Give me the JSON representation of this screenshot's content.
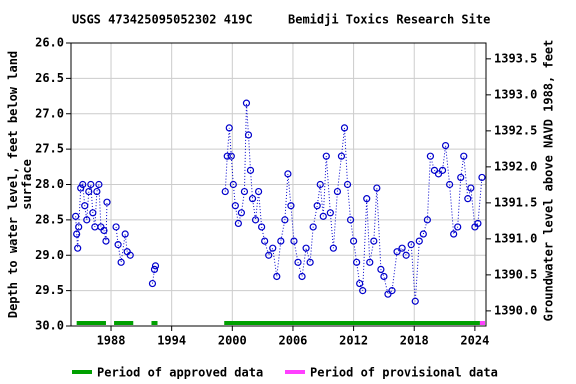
{
  "chart_data": {
    "type": "scatter",
    "title": "USGS 473425095052302 419C",
    "subtitle": "Bemidji Toxics Research Site",
    "ylabel": [
      "Depth to water level, feet below land",
      "surface"
    ],
    "y2label": "Groundwater level above NAVD 1988, feet",
    "xlim": [
      1984.04,
      2025.1
    ],
    "xticks": [
      1988,
      1994,
      2000,
      2006,
      2012,
      2018,
      2024
    ],
    "ylim": [
      26,
      30
    ],
    "y_inverted": true,
    "yticks": [
      {
        "value": 26,
        "label": "26.0"
      },
      26.5,
      {
        "value": 27,
        "label": "27.0"
      },
      27.5,
      {
        "value": 28,
        "label": "28.0"
      },
      28.5,
      {
        "value": 29,
        "label": "29.0"
      },
      29.5,
      {
        "value": 30,
        "label": "30.0"
      }
    ],
    "y2lim": [
      1389.79,
      1393.72
    ],
    "y2ticks": [
      {
        "value": 1390,
        "label": "1390.0"
      },
      1390.5,
      {
        "value": 1391,
        "label": "1391.0"
      },
      1391.5,
      {
        "value": 1392,
        "label": "1392.0"
      },
      1392.5,
      {
        "value": 1393,
        "label": "1393.0"
      },
      1393.5
    ],
    "grid": true,
    "series": [
      {
        "color": "#0000cc",
        "x": [
          1984.5,
          1984.6,
          1984.7,
          1984.8,
          1985.0,
          1985.2,
          1985.4,
          1985.6,
          1985.8,
          1986.0,
          1986.2,
          1986.4,
          1986.6,
          1986.8,
          1987.0,
          1987.3,
          1987.5,
          1987.6,
          1988.0,
          1988.5,
          1988.7,
          1989.0,
          1989.4,
          1989.6,
          1989.9,
          1991.0,
          1992.1,
          1992.3,
          1992.4,
          1996.0,
          1999.3,
          1999.5,
          1999.7,
          1999.9,
          2000.1,
          2000.3,
          2000.6,
          2000.9,
          2001.2,
          2001.4,
          2001.6,
          2001.8,
          2002.0,
          2002.3,
          2002.6,
          2002.9,
          2003.2,
          2003.6,
          2004.0,
          2004.4,
          2004.8,
          2005.2,
          2005.5,
          2005.8,
          2006.1,
          2006.5,
          2006.9,
          2007.3,
          2007.7,
          2008.0,
          2008.4,
          2008.7,
          2009.0,
          2009.3,
          2009.7,
          2010.0,
          2010.4,
          2010.8,
          2011.1,
          2011.4,
          2011.7,
          2012.0,
          2012.3,
          2012.6,
          2012.9,
          2013.3,
          2013.6,
          2014.0,
          2014.3,
          2014.7,
          2015.0,
          2015.4,
          2015.8,
          2016.3,
          2016.8,
          2017.2,
          2017.7,
          2018.1,
          2018.5,
          2018.9,
          2019.3,
          2019.6,
          2020.0,
          2020.4,
          2020.8,
          2021.1,
          2021.5,
          2021.9,
          2022.3,
          2022.6,
          2022.9,
          2023.3,
          2023.6,
          2024.0,
          2024.3,
          2024.7
        ],
        "values": [
          28.45,
          28.7,
          28.9,
          28.6,
          28.05,
          28.0,
          28.3,
          28.5,
          28.1,
          28.0,
          28.4,
          28.6,
          28.1,
          28.0,
          28.6,
          28.65,
          28.8,
          28.25,
          null,
          28.6,
          28.85,
          29.1,
          28.7,
          28.95,
          29.0,
          null,
          29.4,
          29.2,
          29.15,
          null,
          28.1,
          27.6,
          27.2,
          27.6,
          28.0,
          28.3,
          28.55,
          28.4,
          28.1,
          26.85,
          27.3,
          27.8,
          28.2,
          28.5,
          28.1,
          28.6,
          28.8,
          29.0,
          28.9,
          29.3,
          28.8,
          28.5,
          27.85,
          28.3,
          28.8,
          29.1,
          29.3,
          28.9,
          29.1,
          28.6,
          28.3,
          28.0,
          28.45,
          27.6,
          28.4,
          28.9,
          28.1,
          27.6,
          27.2,
          28.0,
          28.5,
          28.8,
          29.1,
          29.4,
          29.5,
          28.2,
          29.1,
          28.8,
          28.05,
          29.2,
          29.3,
          29.55,
          29.5,
          28.95,
          28.9,
          29.0,
          28.85,
          29.65,
          28.8,
          28.7,
          28.5,
          27.6,
          27.8,
          27.85,
          27.8,
          27.45,
          28.0,
          28.7,
          28.6,
          27.9,
          27.6,
          28.2,
          28.05,
          28.6,
          28.55,
          27.9
        ]
      }
    ],
    "approved_periods": [
      [
        1984.6,
        1987.5
      ],
      [
        1988.3,
        1990.2
      ],
      [
        1992.0,
        1992.6
      ],
      [
        1999.2,
        2024.5
      ]
    ],
    "provisional_periods": [
      [
        2024.5,
        2025.0
      ]
    ],
    "legend": [
      {
        "label": "Period of approved data",
        "color": "#00a000"
      },
      {
        "label": "Period of provisional data",
        "color": "#ff40ff"
      }
    ]
  }
}
